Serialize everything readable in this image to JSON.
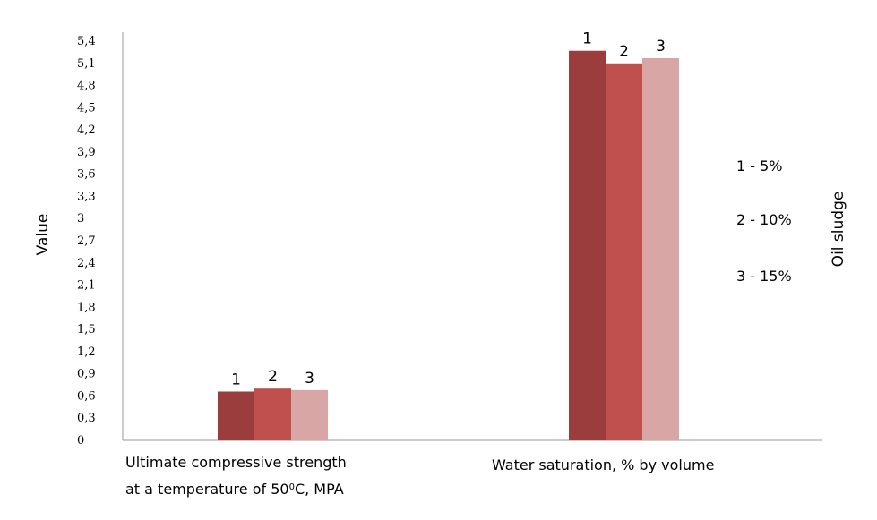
{
  "chart_data": {
    "type": "bar",
    "ylabel": "Value",
    "legend_title": "Oil sludge",
    "ylim": [
      0,
      5.4
    ],
    "y_ticks": [
      "0",
      "0,3",
      "0,6",
      "0,9",
      "1,2",
      "1,5",
      "1,8",
      "2,1",
      "2,4",
      "2,7",
      "3",
      "3,3",
      "3,6",
      "3,9",
      "4,2",
      "4,5",
      "4,8",
      "5,1",
      "5,4"
    ],
    "categories": [
      {
        "line1": "Ultimate compressive strength",
        "line2_prefix": "at a temperature of 50",
        "line2_sup": "0",
        "line2_suffix": "C, MPA"
      },
      {
        "line1": "Water saturation, % by volume",
        "line2_prefix": "",
        "line2_sup": "",
        "line2_suffix": ""
      }
    ],
    "series": [
      {
        "label": "1",
        "values": [
          0.66,
          5.27
        ],
        "color": "#9c3d3d"
      },
      {
        "label": "2",
        "values": [
          0.7,
          5.1
        ],
        "color": "#c0504d"
      },
      {
        "label": "3",
        "values": [
          0.68,
          5.17
        ],
        "color": "#d9a6a6"
      }
    ],
    "legend": [
      "1 - 5%",
      "2 - 10%",
      "3 - 15%"
    ]
  }
}
